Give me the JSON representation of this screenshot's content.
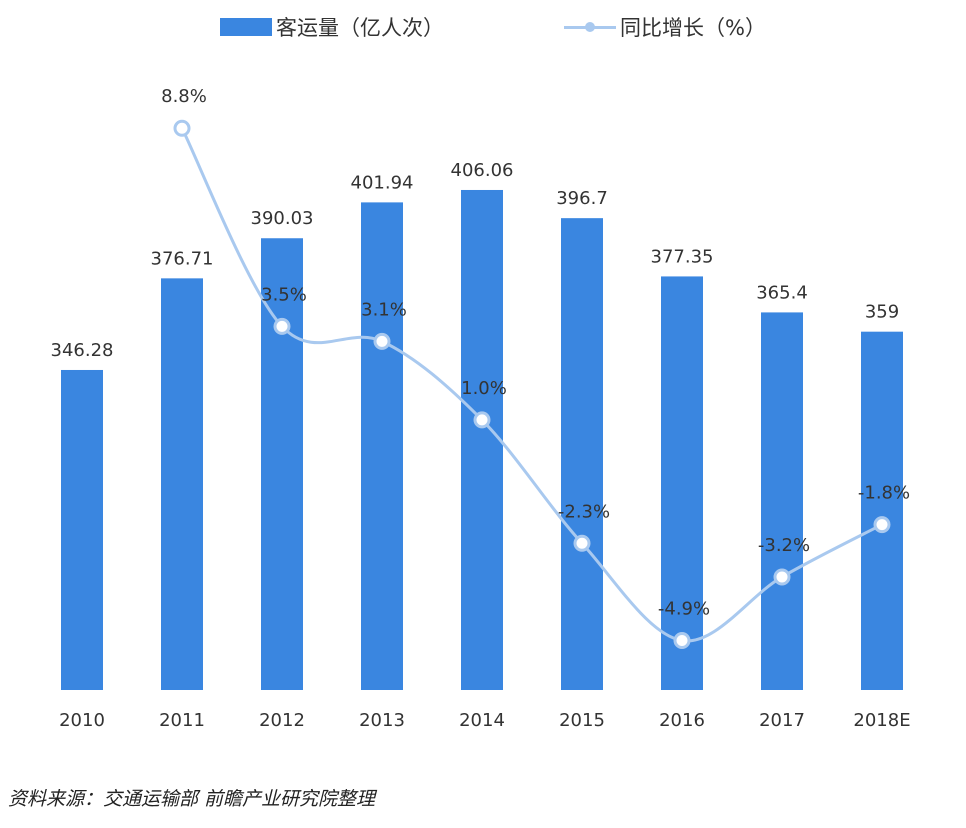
{
  "legend": {
    "bar_label": "客运量（亿人次）",
    "line_label": "同比增长（%）"
  },
  "source": "资料来源：交通运输部  前瞻产业研究院整理",
  "colors": {
    "bar": "#3a86e0",
    "line": "#a9c9ef",
    "text": "#333333"
  },
  "chart_data": {
    "type": "bar",
    "categories": [
      "2010",
      "2011",
      "2012",
      "2013",
      "2014",
      "2015",
      "2016",
      "2017",
      "2018E"
    ],
    "series": [
      {
        "name": "客运量（亿人次）",
        "type": "bar",
        "values": [
          346.28,
          376.71,
          390.03,
          401.94,
          406.06,
          396.7,
          377.35,
          365.4,
          359
        ],
        "labels": [
          "346.28",
          "376.71",
          "390.03",
          "401.94",
          "406.06",
          "396.7",
          "377.35",
          "365.4",
          "359"
        ]
      },
      {
        "name": "同比增长（%）",
        "type": "line",
        "values": [
          null,
          8.8,
          3.5,
          3.1,
          1.0,
          -2.3,
          -4.9,
          -3.2,
          -1.8
        ],
        "labels": [
          "",
          "8.8%",
          "3.5%",
          "3.1%",
          "1.0%",
          "-2.3%",
          "-4.9%",
          "-3.2%",
          "-1.8%"
        ]
      }
    ],
    "bar_axis_range": [
      240,
      420
    ],
    "line_axis_range": [
      -5.1,
      9.1
    ],
    "grid": false,
    "legend_position": "top"
  }
}
